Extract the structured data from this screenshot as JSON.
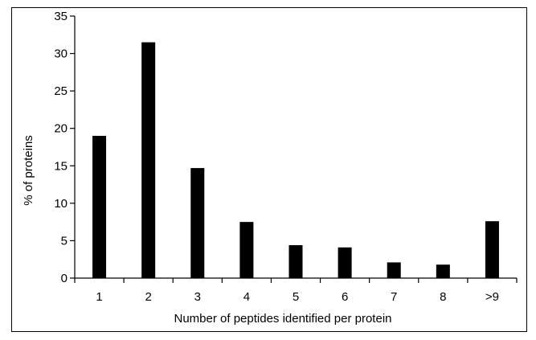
{
  "chart_data": {
    "type": "bar",
    "title": "",
    "xlabel": "Number of peptides identified per protein",
    "ylabel": "% of proteins",
    "categories": [
      "1",
      "2",
      "3",
      "4",
      "5",
      "6",
      "7",
      "8",
      ">9"
    ],
    "values": [
      19.0,
      31.5,
      14.7,
      7.5,
      4.4,
      4.1,
      2.1,
      1.8,
      7.6
    ],
    "ylim": [
      0,
      35
    ],
    "yticks": [
      "0",
      "5",
      "10",
      "15",
      "20",
      "25",
      "30",
      "35"
    ],
    "grid": false,
    "legend": "none",
    "bar_color": "#000000"
  }
}
